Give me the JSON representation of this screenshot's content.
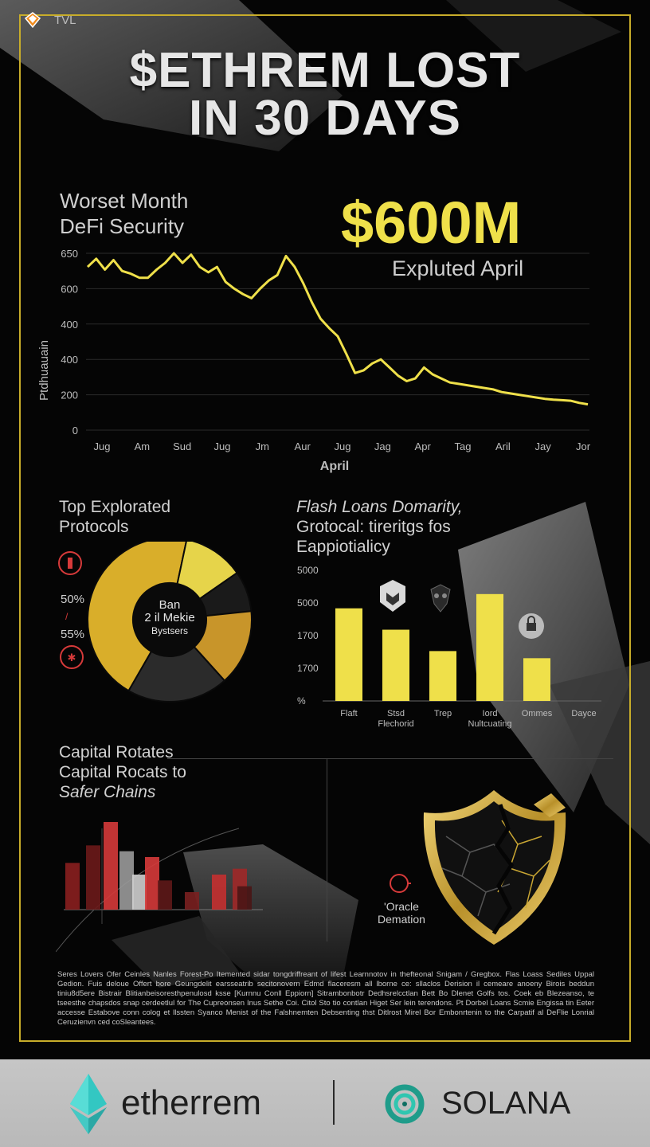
{
  "header": {
    "logo_text": "TVL",
    "headline_line1": "$ETHREM LOST",
    "headline_line2": "IN 30 DAYS"
  },
  "hero": {
    "title_line1": "Worset Month",
    "title_line2": "DeFi Security",
    "big_value": "$600M",
    "big_caption": "Expluted April"
  },
  "line_chart": {
    "ylabel": "Ptdhuauain",
    "xlabel": "April"
  },
  "donut_section": {
    "title_line1": "Top Explorated",
    "title_line2": "Protocols",
    "pct_a": "50%",
    "pct_b": "55%",
    "center_line1": "Ban",
    "center_line2": "2 il Mekie",
    "center_line3": "Bystsers"
  },
  "bar_section": {
    "title_line1": "Flash Loans Domarity,",
    "title_line2": "Grotocal: tireritgs fos",
    "title_line3": "Eappiotialicy"
  },
  "capital_section": {
    "title_line1": "Capital Rotates",
    "title_line2": "Capital Rocats to",
    "title_line3": "Safer Chains"
  },
  "shield": {
    "label_line1": "'Oracle",
    "label_line2": "Demation"
  },
  "fine_print": "Seres Lovers Ofer Ceinles Nanles Forest-Po Itemented sidar tongdriffreant of lifest Learnnotov in thefteonal Snigam / Gregbox. Flas Loass Sediles Uppal Gedion. Fuis deloue Offert bore Geungdelit earsseatrib secitonovern Edmd flaceresm all lborne ce: sllaclos Derision il cemeare anoeny Birois beddun tiniu8d5ere Bistrair Blitianbeisoresthpenulosd ksse [Kurnnu Conll Eppiorn] Sitrambonbotr Dedhsrelcctlan Bett Bo Dlenet Golfs tos. Coek eb Blezeanso, te tseesthe chapsdos snap cerdeetlul for The Cupreonsen Inus Sethe Coi. Citol Sto tio contlan Higet Ser lein terendons. Pt Dorbel Loans Scmie Engissa tin Eeter accesse Estabove conn colog et llssten Syanco Menist of the Falshnemten Debsenting thst Ditlrost Mirel Bor Embonrtenin to the Carpatif al DeFlie Lonrial Ceruzienvn ced coSleantees.",
  "footer": {
    "brand_left": "etherrem",
    "brand_right": "SOLANA"
  },
  "colors": {
    "accent_yellow": "#efe04a",
    "gold": "#d4af37",
    "red": "#d63a3a",
    "frame": "#c8ad2a"
  },
  "chart_data": [
    {
      "type": "line",
      "ylabel": "Ptdhuauain",
      "xlabel": "April",
      "y_ticks": [
        "650",
        "600",
        "400",
        "400",
        "200",
        "0"
      ],
      "x_ticks": [
        "Jug",
        "Am",
        "Sud",
        "Jug",
        "Jm",
        "Aur",
        "Jug",
        "Jag",
        "Apr",
        "Tag",
        "Aril",
        "Jay",
        "Jor"
      ],
      "ylim": [
        0,
        650
      ],
      "grid": true,
      "series": [
        {
          "values": [
            600,
            630,
            590,
            625,
            585,
            575,
            560,
            560,
            590,
            615,
            650,
            615,
            645,
            600,
            580,
            600,
            545,
            520,
            500,
            485,
            520,
            550,
            570,
            640,
            600,
            540,
            470,
            410,
            375,
            345,
            280,
            210,
            220,
            245,
            260,
            230,
            200,
            180,
            190,
            230,
            205,
            190,
            175,
            170,
            165,
            160,
            155,
            150,
            140,
            135,
            130,
            125,
            120,
            115,
            112,
            110,
            108,
            100,
            95
          ]
        }
      ]
    },
    {
      "type": "pie",
      "values": [
        45,
        12,
        8,
        15,
        20
      ],
      "colors": [
        "#d9ae2a",
        "#e6d44a",
        "#1a1a1a",
        "#c8952a",
        "#2b2b2b"
      ],
      "annotations": [
        "50%",
        "55%"
      ]
    },
    {
      "type": "bar",
      "categories": [
        "Flaft",
        "Stsd Flechorid",
        "Trep",
        "Iord Nultcuating",
        "Ommes",
        "Dayce"
      ],
      "values": [
        3900,
        3000,
        2100,
        4500,
        1800,
        0
      ],
      "y_ticks": [
        "5000",
        "5000",
        "1700",
        "1700",
        "%"
      ],
      "ylim": [
        0,
        5500
      ]
    },
    {
      "type": "bar",
      "values": [
        40,
        55,
        75,
        50,
        30,
        45,
        25,
        15,
        30,
        35,
        20
      ],
      "colors": [
        "#8a1f1f",
        "#6b1a1a",
        "#d63a3a",
        "#9a9a9a",
        "#cfcfcf",
        "#d63a3a",
        "#5e1818",
        "#7a2020",
        "#c43030",
        "#a02828",
        "#4a1515"
      ]
    }
  ]
}
